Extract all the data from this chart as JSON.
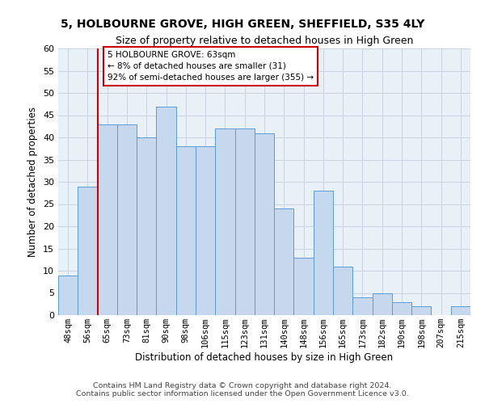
{
  "title1": "5, HOLBOURNE GROVE, HIGH GREEN, SHEFFIELD, S35 4LY",
  "title2": "Size of property relative to detached houses in High Green",
  "xlabel": "Distribution of detached houses by size in High Green",
  "ylabel": "Number of detached properties",
  "categories": [
    "48sqm",
    "56sqm",
    "65sqm",
    "73sqm",
    "81sqm",
    "90sqm",
    "98sqm",
    "106sqm",
    "115sqm",
    "123sqm",
    "131sqm",
    "140sqm",
    "148sqm",
    "156sqm",
    "165sqm",
    "173sqm",
    "182sqm",
    "190sqm",
    "198sqm",
    "207sqm",
    "215sqm"
  ],
  "bar_heights": [
    9,
    29,
    43,
    43,
    40,
    47,
    38,
    38,
    42,
    42,
    41,
    24,
    13,
    28,
    11,
    4,
    5,
    3,
    2,
    0,
    2
  ],
  "bar_color": "#c5d8ed",
  "bar_edge_color": "#5b9bd5",
  "red_line_x": 1.5,
  "ann_line1": "5 HOLBOURNE GROVE: 63sqm",
  "ann_line2": "← 8% of detached houses are smaller (31)",
  "ann_line3": "92% of semi-detached houses are larger (355) →",
  "ann_box_edge": "#cc0000",
  "ylim_max": 60,
  "footer1": "Contains HM Land Registry data © Crown copyright and database right 2024.",
  "footer2": "Contains public sector information licensed under the Open Government Licence v3.0.",
  "axes_bg": "#e8f0f8",
  "fig_bg": "#ffffff",
  "grid_color": "#c8d4e0"
}
